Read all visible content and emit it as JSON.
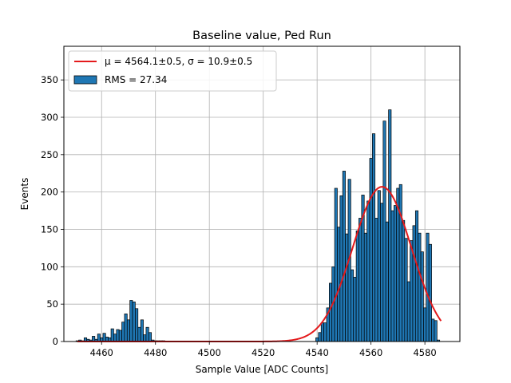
{
  "chart_data": {
    "type": "bar",
    "title": "Baseline value, Ped Run",
    "xlabel": "Sample Value [ADC Counts]",
    "ylabel": "Events",
    "xlim": [
      4446,
      4593
    ],
    "ylim": [
      0,
      395
    ],
    "xticks": [
      4460,
      4480,
      4500,
      4520,
      4540,
      4560,
      4580
    ],
    "yticks": [
      0,
      50,
      100,
      150,
      200,
      250,
      300,
      350
    ],
    "grid": true,
    "legend_position": "top-left",
    "bin_width": 1,
    "histogram": {
      "name": "RMS = 27.34",
      "color": "#1f77b4",
      "edge_color": "#000000",
      "x": [
        4451,
        4452,
        4453,
        4454,
        4455,
        4456,
        4457,
        4458,
        4459,
        4460,
        4461,
        4462,
        4463,
        4464,
        4465,
        4466,
        4467,
        4468,
        4469,
        4470,
        4471,
        4472,
        4473,
        4474,
        4475,
        4476,
        4477,
        4478,
        4479,
        4480,
        4481,
        4482,
        4483,
        4540,
        4541,
        4542,
        4543,
        4544,
        4545,
        4546,
        4547,
        4548,
        4549,
        4550,
        4551,
        4552,
        4553,
        4554,
        4555,
        4556,
        4557,
        4558,
        4559,
        4560,
        4561,
        4562,
        4563,
        4564,
        4565,
        4566,
        4567,
        4568,
        4569,
        4570,
        4571,
        4572,
        4573,
        4574,
        4575,
        4576,
        4577,
        4578,
        4579,
        4580,
        4581,
        4582,
        4583,
        4584,
        4585
      ],
      "values": [
        1,
        2,
        1,
        5,
        3,
        2,
        7,
        3,
        10,
        5,
        11,
        6,
        5,
        17,
        10,
        16,
        15,
        26,
        37,
        29,
        55,
        53,
        44,
        19,
        29,
        9,
        19,
        12,
        2,
        1,
        1,
        1,
        1,
        5,
        12,
        25,
        25,
        45,
        78,
        100,
        205,
        153,
        195,
        228,
        144,
        217,
        96,
        86,
        148,
        165,
        196,
        145,
        188,
        245,
        278,
        165,
        202,
        185,
        295,
        160,
        310,
        175,
        182,
        205,
        210,
        162,
        138,
        80,
        135,
        155,
        175,
        145,
        120,
        45,
        145,
        130,
        30,
        28,
        2
      ]
    },
    "fit": {
      "name_mu": "μ = 4564.1±0.5",
      "name_sep": ", ",
      "name_sigma": "σ = 10.9±0.5",
      "color": "#e41a1c",
      "mu": 4564.1,
      "sigma": 10.9,
      "amplitude": 207,
      "x_range": [
        4451,
        4586
      ]
    }
  }
}
